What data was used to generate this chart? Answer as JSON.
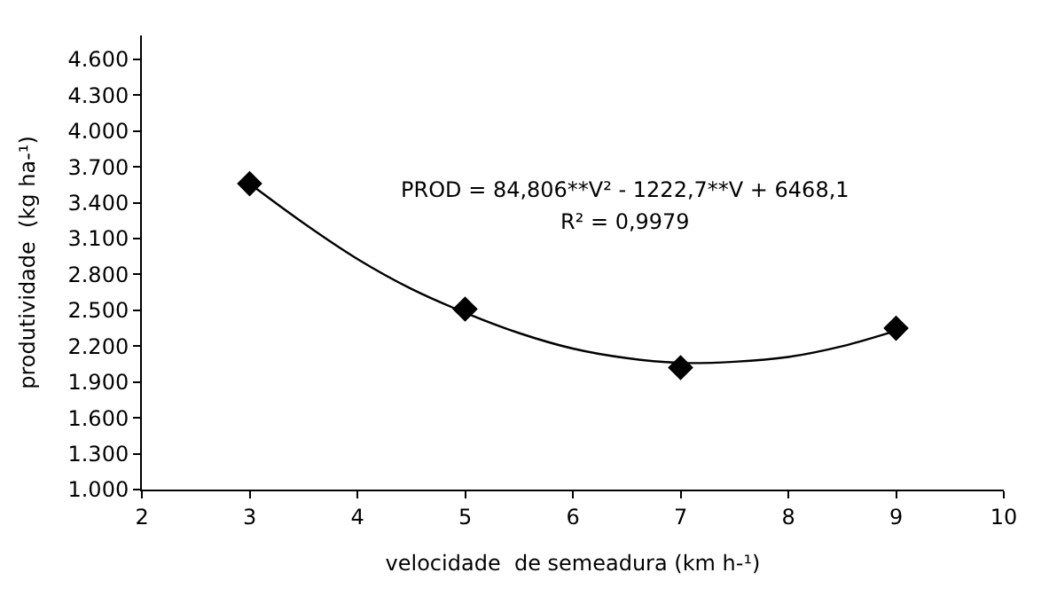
{
  "chart_data": {
    "type": "scatter",
    "xlabel": "velocidade  de semeadura (km h-¹)",
    "ylabel": "produtividade  (kg ha-¹)",
    "x": [
      3,
      5,
      7,
      9
    ],
    "series": [
      {
        "color": "#000000",
        "marker": "diamond",
        "values": [
          3560,
          2510,
          2020,
          2350
        ]
      },
      {
        "type": "line",
        "color": "#000000",
        "marker": "none",
        "line_style": "solid",
        "x": [
          3,
          3.5,
          4,
          4.5,
          5,
          5.5,
          6,
          6.5,
          7,
          7.5,
          8,
          8.5,
          9
        ],
        "values": [
          3560,
          3230,
          2930,
          2680,
          2480,
          2310,
          2180,
          2100,
          2060,
          2070,
          2110,
          2200,
          2330
        ]
      }
    ],
    "annotations": [
      "PROD = 84,806**V² - 1222,7**V + 6468,1",
      "R² = 0,9979"
    ],
    "xlim": [
      2,
      10
    ],
    "xticks": [
      2,
      3,
      4,
      5,
      6,
      7,
      8,
      9,
      10
    ],
    "ylim": [
      1000,
      4800
    ],
    "yticks": [
      {
        "value": 1000,
        "label": "1.000"
      },
      {
        "value": 1300,
        "label": "1.300"
      },
      {
        "value": 1600,
        "label": "1.600"
      },
      {
        "value": 1900,
        "label": "1.900"
      },
      {
        "value": 2200,
        "label": "2.200"
      },
      {
        "value": 2500,
        "label": "2.500"
      },
      {
        "value": 2800,
        "label": "2.800"
      },
      {
        "value": 3100,
        "label": "3.100"
      },
      {
        "value": 3400,
        "label": "3.400"
      },
      {
        "value": 3700,
        "label": "3.700"
      },
      {
        "value": 4000,
        "label": "4.000"
      },
      {
        "value": 4300,
        "label": "4.300"
      },
      {
        "value": 4600,
        "label": "4.600"
      }
    ]
  }
}
